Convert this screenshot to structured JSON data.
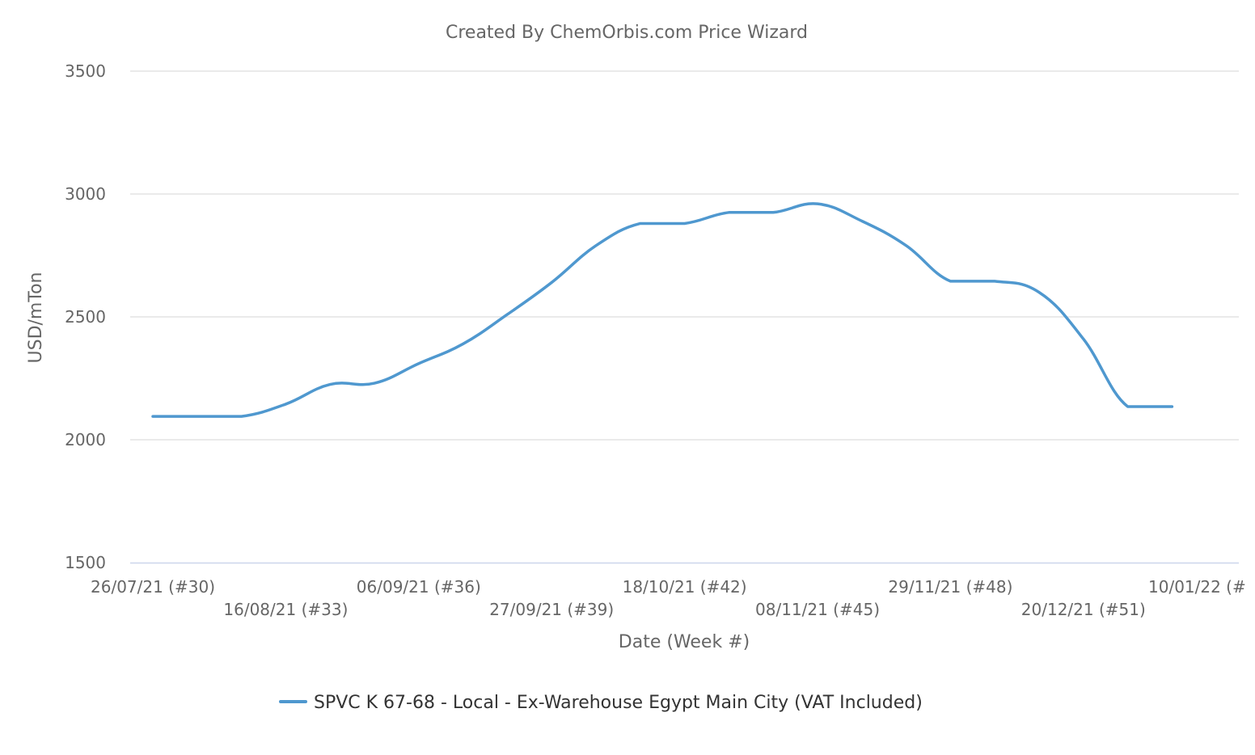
{
  "chart_data": {
    "type": "line",
    "title": "Created By ChemOrbis.com Price Wizard",
    "xlabel": "Date (Week #)",
    "ylabel": "USD/mTon",
    "ylim": [
      1500,
      3500
    ],
    "yticks": [
      1500,
      2000,
      2500,
      3000,
      3500
    ],
    "grid": true,
    "legend_position": "bottom-center",
    "x_tick_labels": [
      "26/07/21 (#30)",
      "16/08/21 (#33)",
      "06/09/21 (#36)",
      "27/09/21 (#39)",
      "18/10/21 (#42)",
      "08/11/21 (#45)",
      "29/11/21 (#48)",
      "20/12/21 (#51)",
      "10/01/22 (#"
    ],
    "x": [
      "26/07/21",
      "02/08/21",
      "09/08/21",
      "16/08/21",
      "23/08/21",
      "30/08/21",
      "06/09/21",
      "13/09/21",
      "20/09/21",
      "27/09/21",
      "04/10/21",
      "11/10/21",
      "18/10/21",
      "25/10/21",
      "01/11/21",
      "08/11/21",
      "15/11/21",
      "22/11/21",
      "29/11/21",
      "06/12/21",
      "13/12/21",
      "20/12/21",
      "27/12/21",
      "03/01/22"
    ],
    "series": [
      {
        "name": "SPVC K 67-68 - Local - Ex-Warehouse Egypt Main City (VAT Included)",
        "color": "#4f98cf",
        "values": [
          2095,
          2095,
          2095,
          2145,
          2225,
          2230,
          2310,
          2390,
          2510,
          2640,
          2790,
          2880,
          2880,
          2925,
          2925,
          2960,
          2890,
          2790,
          2645,
          2645,
          2600,
          2410,
          2135,
          2135
        ]
      }
    ]
  }
}
